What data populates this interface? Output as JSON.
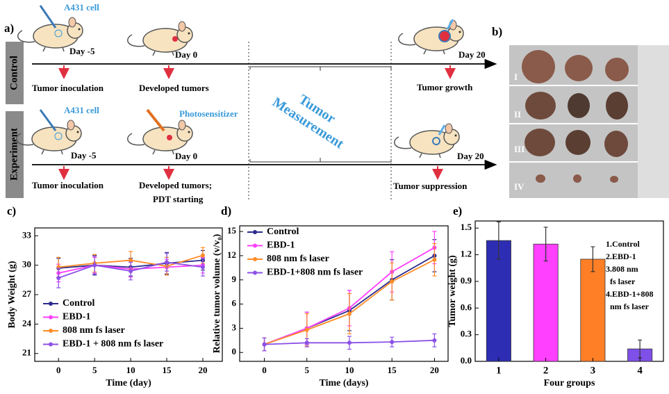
{
  "panel_a": {
    "label": "a)",
    "control": {
      "name": "Control",
      "cell": "A431 cell",
      "days": [
        "Day -5",
        "Day 0",
        "Day 20"
      ],
      "captions": [
        "Tumor inoculation",
        "Developed tumors",
        "Tumor growth"
      ]
    },
    "experiment": {
      "name": "Experiment",
      "cell": "A431 cell",
      "agent": "Photosensitizer",
      "days": [
        "Day -5",
        "Day 0",
        "Day 20"
      ],
      "captions": [
        "Tumor inoculation",
        "Developed tumors;",
        "PDT starting",
        "Tumor suppression"
      ]
    },
    "measurement": [
      "Tumor",
      "Measurement"
    ]
  },
  "panel_b": {
    "label": "b)",
    "rows": [
      "I",
      "II",
      "III",
      "IV"
    ]
  },
  "chart_data": [
    {
      "type": "line",
      "label": "c)",
      "xlabel": "Time (day)",
      "ylabel": "Body Weight (g)",
      "x": [
        0,
        5,
        10,
        15,
        20
      ],
      "xlim": [
        -3.3,
        22.7
      ],
      "xticks": [
        0,
        5,
        10,
        15,
        20
      ],
      "ylim": [
        20.2,
        33.8
      ],
      "yticks": [
        21,
        24,
        27,
        30,
        33
      ],
      "series": [
        {
          "name": "Control",
          "color": "#2b2b8c",
          "values": [
            29.7,
            30.0,
            29.8,
            30.2,
            30.5
          ],
          "errors": [
            1.0,
            1.0,
            0.9,
            1.1,
            1.0
          ]
        },
        {
          "name": "EBD-1",
          "color": "#ff40ff",
          "values": [
            29.2,
            30.0,
            29.6,
            29.8,
            30.0
          ],
          "errors": [
            0.9,
            0.8,
            0.8,
            0.8,
            0.8
          ]
        },
        {
          "name": "808 nm fs laser",
          "color": "#ff8c28",
          "values": [
            29.8,
            30.2,
            30.5,
            29.9,
            31.0
          ],
          "errors": [
            1.0,
            0.9,
            0.9,
            0.9,
            0.8
          ]
        },
        {
          "name": "EBD-1 + 808 nm fs laser",
          "color": "#8c50e6",
          "values": [
            28.7,
            30.0,
            29.4,
            30.3,
            29.8
          ],
          "errors": [
            1.0,
            0.9,
            0.9,
            0.9,
            0.9
          ]
        }
      ]
    },
    {
      "type": "line",
      "label": "d)",
      "xlabel": "Time (days)",
      "ylabel": "Relative tumor volume (v/v₀)",
      "x": [
        0,
        5,
        10,
        15,
        20
      ],
      "xlim": [
        -2.9,
        21.6
      ],
      "xticks": [
        0,
        5,
        10,
        15,
        20
      ],
      "ylim": [
        -1.1,
        15.7
      ],
      "yticks": [
        0,
        3,
        6,
        9,
        12,
        15
      ],
      "series": [
        {
          "name": "Control",
          "color": "#2b2b8c",
          "values": [
            1,
            3,
            5.2,
            9,
            12
          ],
          "errors": [
            0.8,
            2,
            2.5,
            2.5,
            2
          ]
        },
        {
          "name": "EBD-1",
          "color": "#ff40ff",
          "values": [
            1,
            3,
            5.5,
            10,
            13
          ],
          "errors": [
            0.8,
            2,
            2.2,
            2.5,
            2
          ]
        },
        {
          "name": "808 nm fs laser",
          "color": "#ff8c28",
          "values": [
            1,
            2.8,
            4.8,
            8.8,
            11.5
          ],
          "errors": [
            0.8,
            2,
            2.5,
            2.3,
            2
          ]
        },
        {
          "name": "EBD-1+808 nm fs laser",
          "color": "#8c50e6",
          "values": [
            1,
            1.2,
            1.2,
            1.3,
            1.5
          ],
          "errors": [
            0.8,
            0.5,
            0.8,
            0.6,
            0.8
          ]
        }
      ]
    },
    {
      "type": "bar",
      "label": "e)",
      "xlabel": "Four groups",
      "ylabel": "Tumor weight (g)",
      "categories": [
        "1",
        "2",
        "3",
        "4"
      ],
      "values": [
        1.36,
        1.32,
        1.15,
        0.14
      ],
      "errors": [
        0.21,
        0.19,
        0.14,
        0.1
      ],
      "colors": [
        "#2d2db4",
        "#ff40ff",
        "#ff7f27",
        "#7f50e8"
      ],
      "ylim": [
        0,
        1.58
      ],
      "yticks": [
        {
          "value": 0,
          "label": "0.0"
        },
        0.3,
        0.6,
        0.9,
        1.2,
        1.5
      ],
      "annotation": [
        "1.Control",
        "2.EBD-1",
        "3.808 nm",
        "fs laser",
        "4.EBD-1+808",
        "nm fs laser"
      ]
    }
  ]
}
